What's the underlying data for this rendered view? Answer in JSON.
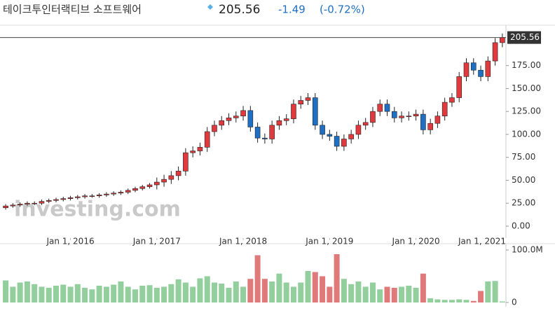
{
  "header": {
    "title": "테이크투인터랙티브 소프트웨어",
    "price": "205.56",
    "change": "-1.49",
    "change_pct": "(-0.72%)"
  },
  "chart_data": {
    "type": "candlestick",
    "watermark": "investing.com",
    "up_color": "#e0393e",
    "down_color": "#1f6fc4",
    "volume_up_color": "#93cf9d",
    "volume_down_color": "#e07a7a",
    "xlim": [
      -0.3,
      69.5
    ],
    "xticks": [
      {
        "value": 9,
        "label": "Jan 1, 2016"
      },
      {
        "value": 21,
        "label": "Jan 1, 2017"
      },
      {
        "value": 33,
        "label": "Jan 1, 2018"
      },
      {
        "value": 45,
        "label": "Jan 1, 2019"
      },
      {
        "value": 57,
        "label": "Jan 1, 2020"
      },
      {
        "value": 69,
        "label": "Jan 1, 2021"
      }
    ],
    "ylim": [
      -13,
      219
    ],
    "yticks": [
      {
        "value": 0,
        "label": "0.00"
      },
      {
        "value": 25,
        "label": "25.00"
      },
      {
        "value": 50,
        "label": "50.00"
      },
      {
        "value": 75,
        "label": "75.00"
      },
      {
        "value": 100,
        "label": "100.00"
      },
      {
        "value": 125,
        "label": "125.00"
      },
      {
        "value": 150,
        "label": "150.00"
      },
      {
        "value": 175,
        "label": "175.00"
      }
    ],
    "open": [
      20,
      22,
      23,
      24,
      25,
      25,
      27,
      28,
      29,
      30,
      31,
      32,
      33,
      33,
      34,
      35,
      36,
      37,
      39,
      41,
      43,
      45,
      48,
      51,
      55,
      60,
      80,
      82,
      86,
      103,
      110,
      115,
      118,
      120,
      126,
      108,
      96,
      95,
      110,
      115,
      117,
      133,
      137,
      140,
      110,
      100,
      98,
      87,
      95,
      100,
      110,
      113,
      125,
      133,
      125,
      118,
      120,
      120,
      122,
      105,
      112,
      120,
      135,
      140,
      163,
      178,
      170,
      163,
      180,
      200
    ],
    "high": [
      24,
      25,
      26,
      27,
      27,
      29,
      30,
      31,
      32,
      33,
      34,
      35,
      35,
      36,
      37,
      38,
      39,
      41,
      43,
      45,
      47,
      53,
      56,
      60,
      65,
      85,
      87,
      91,
      108,
      115,
      120,
      123,
      125,
      131,
      131,
      113,
      101,
      115,
      120,
      122,
      138,
      142,
      145,
      145,
      115,
      105,
      103,
      100,
      105,
      115,
      118,
      130,
      138,
      138,
      130,
      125,
      125,
      127,
      127,
      117,
      125,
      140,
      145,
      168,
      183,
      183,
      175,
      185,
      205,
      210
    ],
    "low": [
      18,
      20,
      21,
      22,
      23,
      23,
      25,
      26,
      27,
      28,
      29,
      30,
      31,
      31,
      32,
      33,
      34,
      35,
      37,
      39,
      41,
      40,
      43,
      46,
      50,
      55,
      75,
      77,
      81,
      98,
      105,
      110,
      113,
      115,
      103,
      91,
      90,
      90,
      105,
      110,
      112,
      128,
      132,
      105,
      95,
      93,
      82,
      82,
      90,
      95,
      105,
      108,
      120,
      120,
      113,
      113,
      115,
      115,
      100,
      100,
      107,
      115,
      130,
      135,
      158,
      165,
      158,
      158,
      175,
      195
    ],
    "close": [
      22,
      23,
      24,
      25,
      25,
      27,
      28,
      29,
      30,
      31,
      32,
      33,
      33,
      34,
      35,
      36,
      37,
      39,
      41,
      43,
      45,
      48,
      51,
      55,
      60,
      80,
      82,
      86,
      103,
      110,
      115,
      118,
      120,
      126,
      108,
      96,
      95,
      110,
      115,
      117,
      133,
      137,
      140,
      110,
      100,
      98,
      87,
      95,
      100,
      110,
      113,
      125,
      133,
      125,
      118,
      120,
      120,
      122,
      105,
      112,
      120,
      135,
      140,
      163,
      178,
      170,
      163,
      180,
      200,
      205.56
    ],
    "volume": [
      42,
      30,
      38,
      40,
      35,
      30,
      28,
      32,
      34,
      30,
      35,
      28,
      25,
      32,
      30,
      34,
      40,
      30,
      25,
      32,
      33,
      28,
      30,
      35,
      44,
      38,
      30,
      46,
      50,
      38,
      36,
      28,
      40,
      30,
      45,
      90,
      45,
      40,
      55,
      38,
      30,
      38,
      60,
      58,
      50,
      30,
      92,
      45,
      35,
      40,
      30,
      38,
      25,
      30,
      28,
      30,
      32,
      28,
      55,
      8,
      6,
      5,
      5,
      6,
      5,
      3,
      22,
      40,
      41,
      2
    ],
    "volume_ylim": [
      0,
      100
    ],
    "volume_yticks": [
      {
        "value": 0,
        "label": "0"
      },
      {
        "value": 100,
        "label": "100.0M"
      }
    ]
  }
}
